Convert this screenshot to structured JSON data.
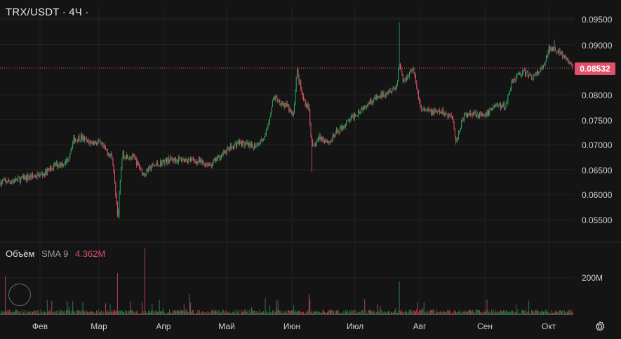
{
  "header": {
    "title": "TRX/USDT · 4Ч ·"
  },
  "volume_legend": {
    "label": "Объём",
    "sma": "SMA 9",
    "value": "4.362M"
  },
  "price_badge": {
    "value": "0.08532"
  },
  "colors": {
    "up": "#26a65b",
    "down": "#e0506b",
    "background": "#141414",
    "grid": "#222222",
    "price_line": "#e0506b"
  },
  "chart_data": [
    {
      "type": "candlestick",
      "title": "TRX/USDT · 4Ч ·",
      "x_labels": [
        "Фев",
        "Мар",
        "Апр",
        "Май",
        "Июн",
        "Июл",
        "Авг",
        "Сен",
        "Окт"
      ],
      "y_tick_labels": [
        "0.09500",
        "0.09000",
        "0.08000",
        "0.07500",
        "0.07000",
        "0.06500",
        "0.06000",
        "0.05500"
      ],
      "ylim": [
        0.0535,
        0.0965
      ],
      "last_price": 0.08532,
      "series": [
        {
          "values_by_month_close": [
            [
              "Фев",
              0.063
            ],
            [
              "Мар",
              0.07
            ],
            [
              "Апр",
              0.065
            ],
            [
              "Май",
              0.067
            ],
            [
              "Июн",
              0.079
            ],
            [
              "Июл",
              0.077
            ],
            [
              "Авг",
              0.08
            ],
            [
              "Сен",
              0.0765
            ],
            [
              "Окт",
              0.088
            ]
          ]
        }
      ],
      "grid": true
    },
    {
      "type": "bar",
      "title": "Объём",
      "y_tick_labels": [
        "200M"
      ],
      "sma_label": "SMA 9",
      "sma_value": "4.362M"
    }
  ],
  "settings_icon": "gear-icon"
}
